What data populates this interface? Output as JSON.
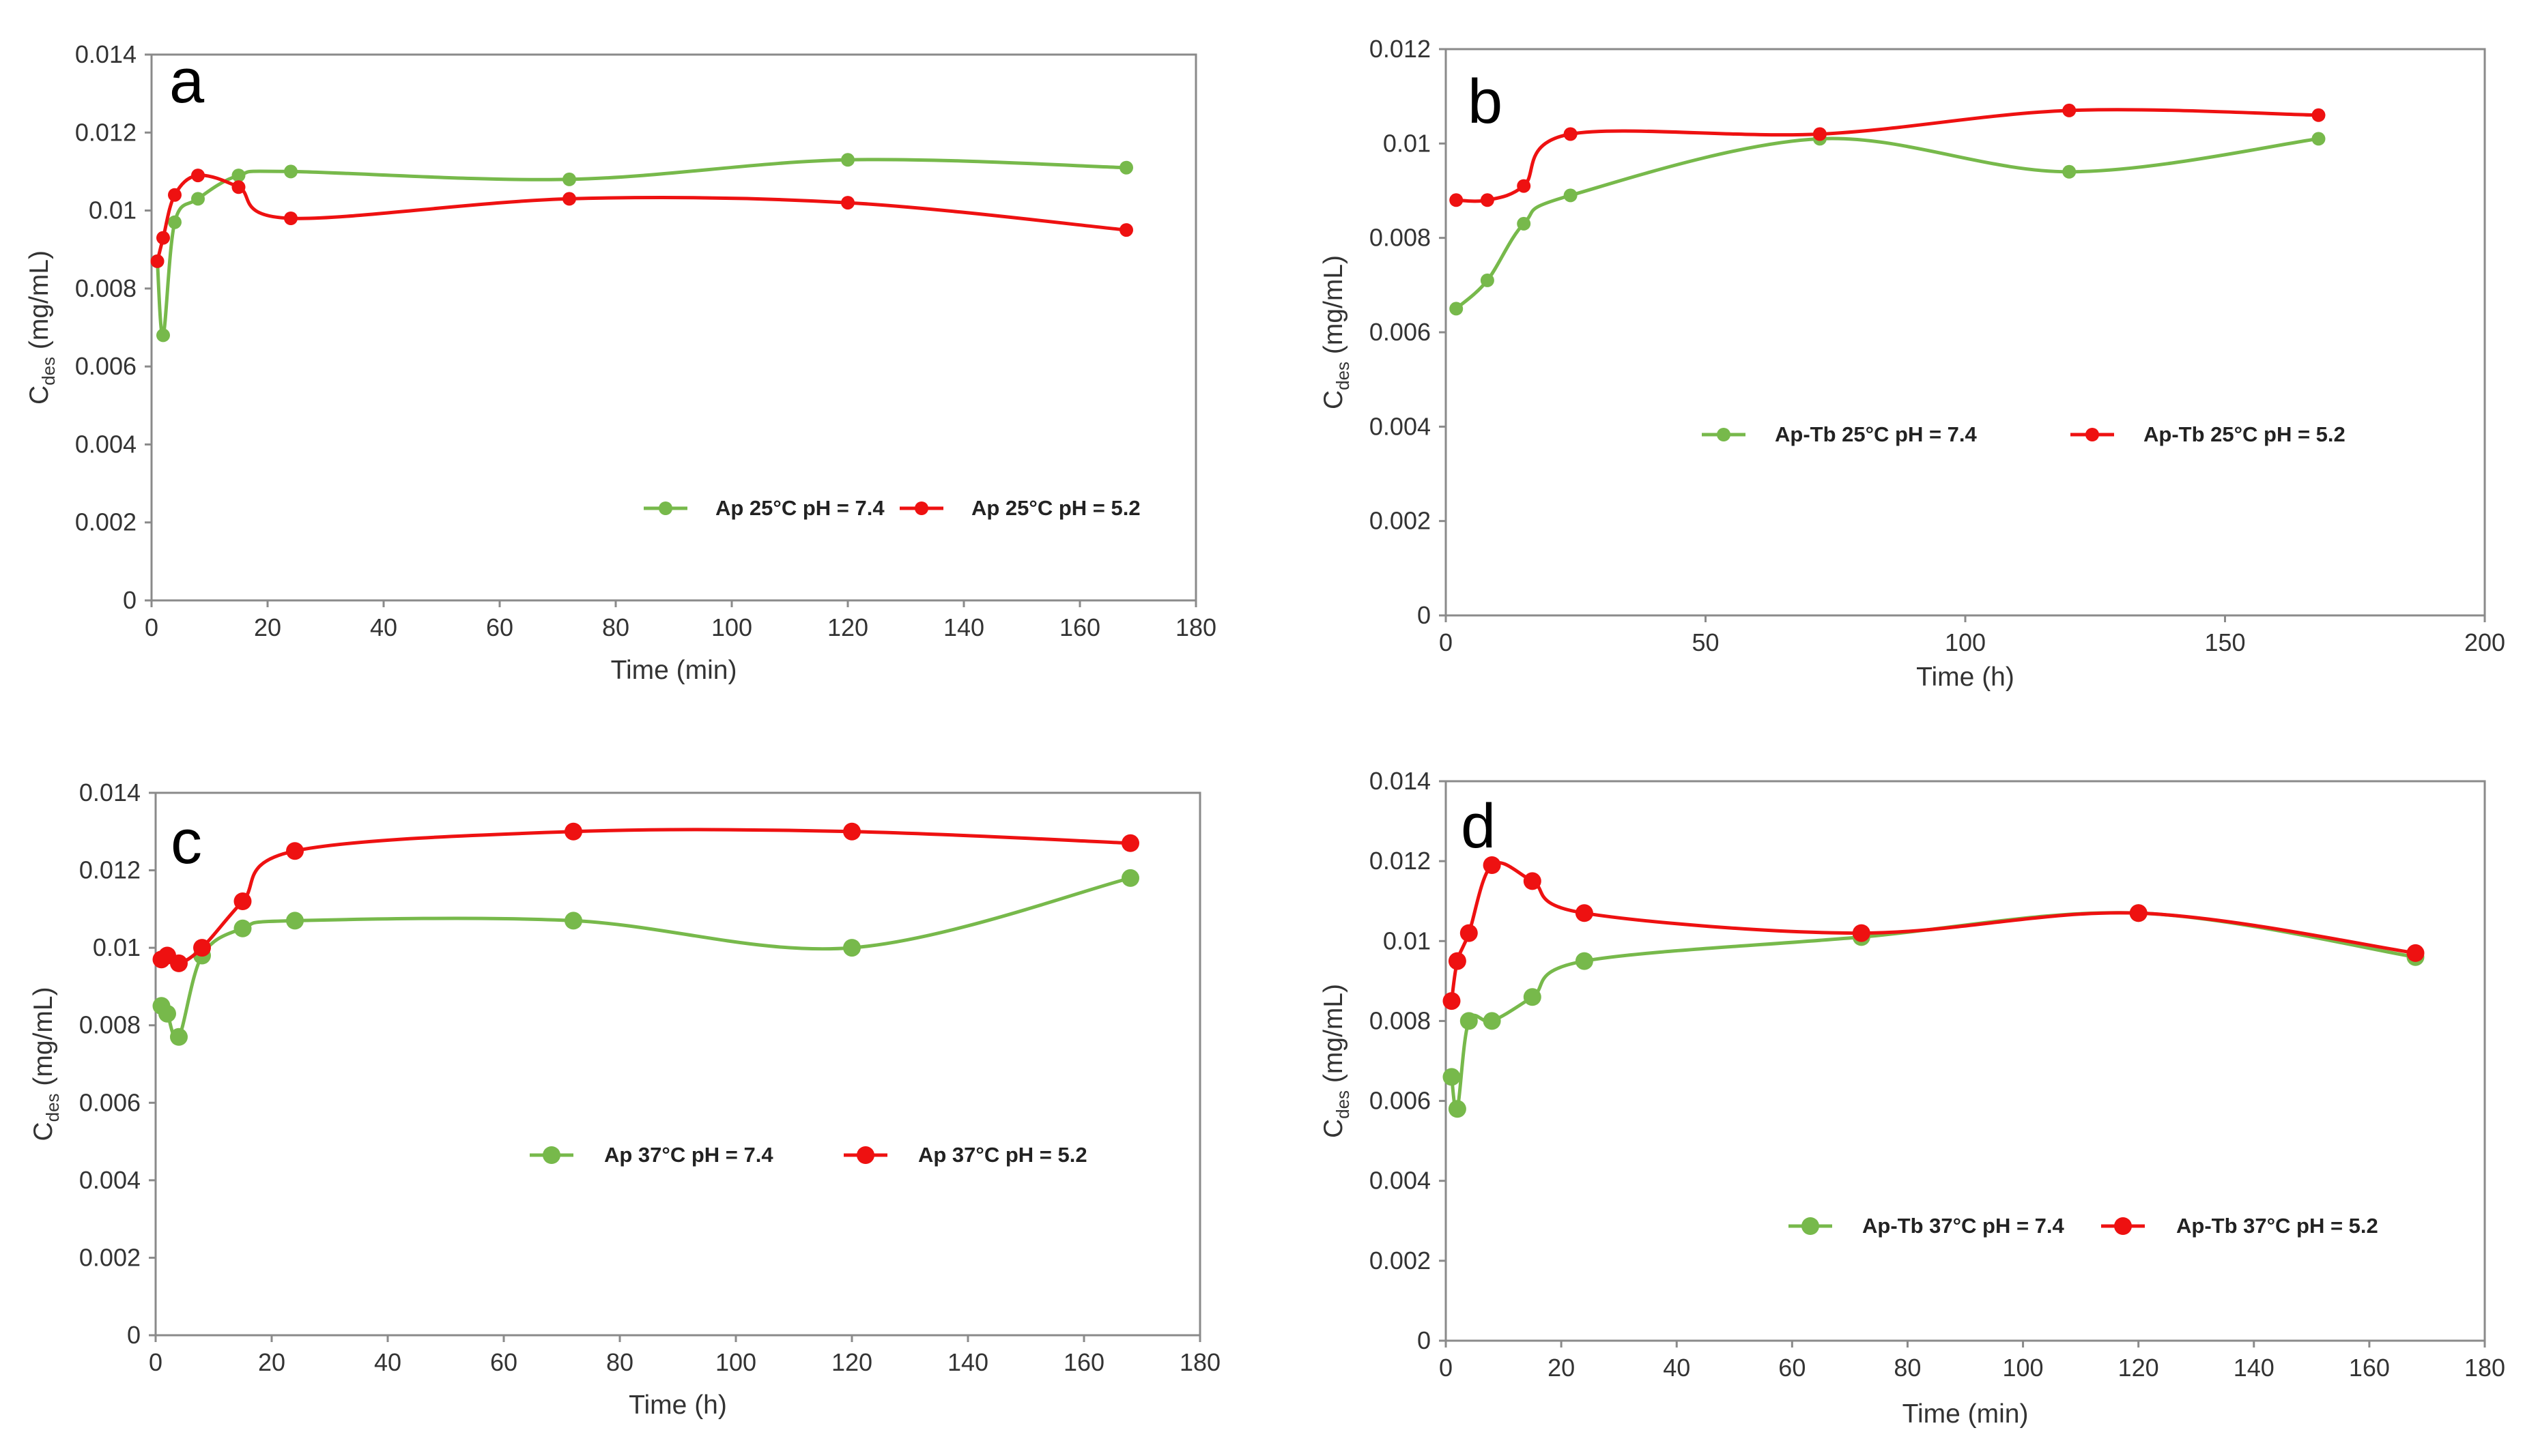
{
  "chart_data": [
    {
      "type": "line",
      "panel_label": "a",
      "xlabel": "Time (min)",
      "ylabel_main": "C",
      "ylabel_sub": "des",
      "ylabel_unit": " (mg/mL)",
      "xlim": [
        0,
        180
      ],
      "ylim": [
        0,
        0.014
      ],
      "xticks": [
        "0",
        "20",
        "40",
        "60",
        "80",
        "100",
        "120",
        "140",
        "160",
        "180"
      ],
      "yticks": [
        "0",
        "0.002",
        "0.004",
        "0.006",
        "0.008",
        "0.01",
        "0.012",
        "0.014"
      ],
      "grid": false,
      "series": [
        {
          "name": "Ap 25°C pH = 7.4",
          "color": "#77b94b",
          "x": [
            1,
            2,
            4,
            8,
            15,
            24,
            72,
            120,
            168
          ],
          "y": [
            0.0087,
            0.0068,
            0.0097,
            0.0103,
            0.0109,
            0.011,
            0.0108,
            0.0113,
            0.0111
          ]
        },
        {
          "name": "Ap 25°C pH = 5.2",
          "color": "#ee1111",
          "x": [
            1,
            2,
            4,
            8,
            15,
            24,
            72,
            120,
            168
          ],
          "y": [
            0.0087,
            0.0093,
            0.0104,
            0.0109,
            0.0106,
            0.0098,
            0.0103,
            0.0102,
            0.0095
          ]
        }
      ]
    },
    {
      "type": "line",
      "panel_label": "b",
      "xlabel": "Time (h)",
      "ylabel_main": "C",
      "ylabel_sub": "des",
      "ylabel_unit": " (mg/mL)",
      "xlim": [
        0,
        200
      ],
      "ylim": [
        0,
        0.012
      ],
      "xticks": [
        "0",
        "50",
        "100",
        "150",
        "200"
      ],
      "yticks": [
        "0",
        "0.002",
        "0.004",
        "0.006",
        "0.008",
        "0.01",
        "0.012"
      ],
      "grid": false,
      "series": [
        {
          "name": "Ap-Tb 25°C pH = 7.4",
          "color": "#77b94b",
          "x": [
            2,
            8,
            15,
            24,
            72,
            120,
            168
          ],
          "y": [
            0.0065,
            0.0071,
            0.0083,
            0.0089,
            0.0101,
            0.0094,
            0.0101
          ]
        },
        {
          "name": "Ap-Tb 25°C pH = 5.2",
          "color": "#ee1111",
          "x": [
            2,
            8,
            15,
            24,
            72,
            120,
            168
          ],
          "y": [
            0.0088,
            0.0088,
            0.0091,
            0.0102,
            0.0102,
            0.0107,
            0.0106
          ]
        }
      ]
    },
    {
      "type": "line",
      "panel_label": "c",
      "xlabel": "Time (h)",
      "ylabel_main": "C",
      "ylabel_sub": "des",
      "ylabel_unit": " (mg/mL)",
      "xlim": [
        0,
        180
      ],
      "ylim": [
        0,
        0.014
      ],
      "xticks": [
        "0",
        "20",
        "40",
        "60",
        "80",
        "100",
        "120",
        "140",
        "160",
        "180"
      ],
      "yticks": [
        "0",
        "0.002",
        "0.004",
        "0.006",
        "0.008",
        "0.01",
        "0.012",
        "0.014"
      ],
      "grid": false,
      "series": [
        {
          "name": "Ap 37°C pH = 7.4",
          "color": "#77b94b",
          "x": [
            1,
            2,
            4,
            8,
            15,
            24,
            72,
            120,
            168
          ],
          "y": [
            0.0085,
            0.0083,
            0.0077,
            0.0098,
            0.0105,
            0.0107,
            0.0107,
            0.01,
            0.0118
          ]
        },
        {
          "name": "Ap 37°C pH = 5.2",
          "color": "#ee1111",
          "x": [
            1,
            2,
            4,
            8,
            15,
            24,
            72,
            120,
            168
          ],
          "y": [
            0.0097,
            0.0098,
            0.0096,
            0.01,
            0.0112,
            0.0125,
            0.013,
            0.013,
            0.0127
          ]
        }
      ]
    },
    {
      "type": "line",
      "panel_label": "d",
      "xlabel": "Time (min)",
      "ylabel_main": "C",
      "ylabel_sub": "des",
      "ylabel_unit": " (mg/mL)",
      "xlim": [
        0,
        180
      ],
      "ylim": [
        0,
        0.014
      ],
      "xticks": [
        "0",
        "20",
        "40",
        "60",
        "80",
        "100",
        "120",
        "140",
        "160",
        "180"
      ],
      "yticks": [
        "0",
        "0.002",
        "0.004",
        "0.006",
        "0.008",
        "0.01",
        "0.012",
        "0.014"
      ],
      "grid": false,
      "series": [
        {
          "name": "Ap-Tb 37°C pH = 7.4",
          "color": "#77b94b",
          "x": [
            1,
            2,
            4,
            8,
            15,
            24,
            72,
            120,
            168
          ],
          "y": [
            0.0066,
            0.0058,
            0.008,
            0.008,
            0.0086,
            0.0095,
            0.0101,
            0.0107,
            0.0096
          ]
        },
        {
          "name": "Ap-Tb 37°C pH = 5.2",
          "color": "#ee1111",
          "x": [
            1,
            2,
            4,
            8,
            15,
            24,
            72,
            120,
            168
          ],
          "y": [
            0.0085,
            0.0095,
            0.0102,
            0.0119,
            0.0115,
            0.0107,
            0.0102,
            0.0107,
            0.0097
          ]
        }
      ]
    }
  ]
}
